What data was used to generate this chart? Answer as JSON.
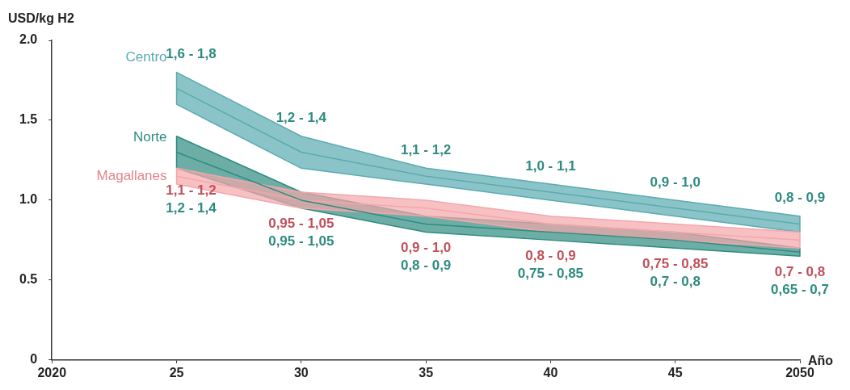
{
  "chart_data": {
    "type": "line",
    "xlabel": "Año",
    "ylabel": "USD/kg H2",
    "x": [
      2025,
      2030,
      2035,
      2040,
      2045,
      2050
    ],
    "xlim": [
      2020,
      2050
    ],
    "xticks": [
      {
        "value": 2020,
        "label": "2020"
      },
      {
        "value": 2025,
        "label": "25"
      },
      {
        "value": 2030,
        "label": "30"
      },
      {
        "value": 2035,
        "label": "35"
      },
      {
        "value": 2040,
        "label": "40"
      },
      {
        "value": 2045,
        "label": "45"
      },
      {
        "value": 2050,
        "label": "2050"
      }
    ],
    "ylim": [
      0,
      2
    ],
    "yticks": [
      0,
      {
        "value": 0.5,
        "label": "0.5"
      },
      {
        "value": 1,
        "label": "1.0"
      },
      {
        "value": 1.5,
        "label": "1.5"
      },
      {
        "value": 2,
        "label": "2.0"
      }
    ],
    "grid": false,
    "legend": false,
    "marker": "none",
    "line_style": "solid",
    "series": [
      {
        "name": "Centro",
        "color": "#5aabb0",
        "values": [
          1.7,
          1.3,
          1.15,
          1.05,
          0.95,
          0.85
        ],
        "lower": [
          1.6,
          1.2,
          1.1,
          1.0,
          0.9,
          0.8
        ],
        "upper": [
          1.8,
          1.4,
          1.2,
          1.1,
          1.0,
          0.9
        ]
      },
      {
        "name": "Norte",
        "color": "#2e8b80",
        "values": [
          1.3,
          1.0,
          0.85,
          0.8,
          0.75,
          0.675
        ],
        "lower": [
          1.2,
          0.95,
          0.8,
          0.75,
          0.7,
          0.65
        ],
        "upper": [
          1.4,
          1.05,
          0.9,
          0.85,
          0.8,
          0.7
        ]
      },
      {
        "name": "Magallanes",
        "color": "#f4a6ab",
        "values": [
          1.15,
          1.0,
          0.95,
          0.85,
          0.8,
          0.75
        ],
        "lower": [
          1.1,
          0.95,
          0.9,
          0.8,
          0.75,
          0.7
        ],
        "upper": [
          1.2,
          1.05,
          1.0,
          0.9,
          0.85,
          0.8
        ]
      }
    ],
    "annotations": [
      "1,6 - 1,8",
      "1,2 - 1,4",
      "1,1 - 1,2",
      "1,0 - 1,1",
      "0,9 - 1,0",
      "0,8 - 0,9",
      "1,2 - 1,4",
      "0,95 - 1,05",
      "0,8 - 0,9",
      "0,75 - 0,85",
      "0,7 - 0,8",
      "0,65 - 0,7",
      "1,1 - 1,2",
      "0,95 - 1,05",
      "0,9 - 1,0",
      "0,8 - 0,9",
      "0,75 - 0,85",
      "0,7 - 0,8"
    ]
  }
}
